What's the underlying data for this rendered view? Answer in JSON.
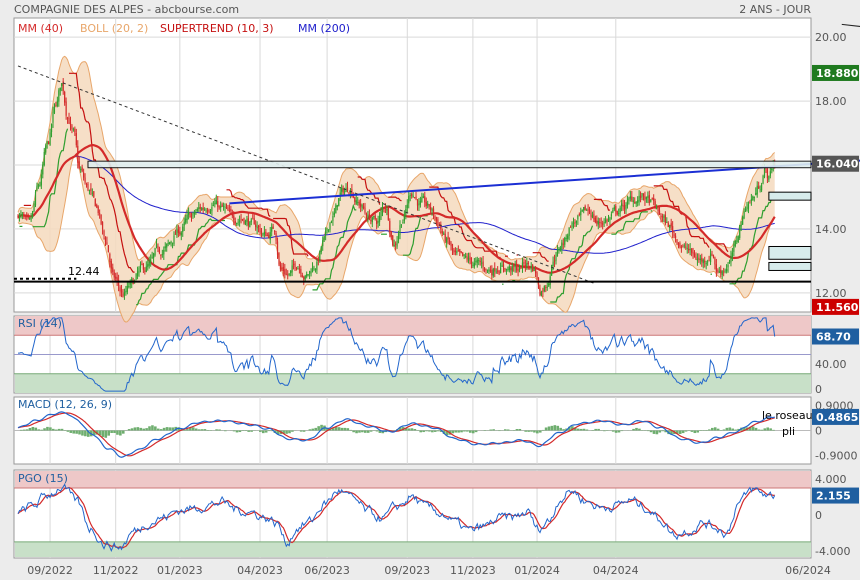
{
  "header": {
    "title": "COMPAGNIE DES ALPES - abcbourse.com",
    "period": "2 ANS - JOUR"
  },
  "colors": {
    "background": "#ececec",
    "panel": "#ffffff",
    "grid": "#d9d9d9",
    "candle_up": "#2e9e2e",
    "candle_down": "#d42a2a",
    "mm40": "#d42a2a",
    "boll_fill": "#f4d9bd",
    "boll_line": "#e8a66a",
    "supertrend_up": "#2e9e2e",
    "supertrend_down": "#c51010",
    "mm200": "#2020cc",
    "trend_blue": "#1b2fd4",
    "overbought_zone": "#eec8c8",
    "oversold_zone": "#c8e0c8",
    "rsi_line": "#2266cc",
    "macd_line": "#2266cc",
    "signal_line": "#d42a2a",
    "macd_hist": "#6fae6f",
    "pgo_line": "#2266cc",
    "pgo_signal": "#d42a2a",
    "tag_dark": "#555555",
    "tag_green": "#1f7a1f",
    "tag_red": "#cc0000",
    "tag_blue": "#1f5fa0"
  },
  "chart_data": [
    {
      "panel": "price",
      "type": "candlestick",
      "legend": [
        {
          "label": "MM (40)",
          "color": "#d42a2a"
        },
        {
          "label": "BOLL (20, 2)",
          "color": "#e8a66a"
        },
        {
          "label": "SUPERTREND (10, 3)",
          "color": "#c51010"
        },
        {
          "label": "MM (200)",
          "color": "#2020cc"
        }
      ],
      "y_ticks": [
        12.0,
        14.0,
        16.0,
        18.0,
        20.0
      ],
      "ylim": [
        11.4,
        20.6
      ],
      "price_tags": [
        {
          "value": 18.88,
          "label": "18.880",
          "style": "green"
        },
        {
          "value": 16.04,
          "label": "16.040",
          "style": "dark"
        },
        {
          "value": 11.56,
          "label": "11.560",
          "style": "red"
        }
      ],
      "annotation_level": {
        "value": 12.44,
        "label": "12.44"
      },
      "anchors": [
        [
          0,
          14.5
        ],
        [
          8,
          14.0
        ],
        [
          14,
          15.2
        ],
        [
          20,
          16.5
        ],
        [
          26,
          17.8
        ],
        [
          30,
          18.5
        ],
        [
          34,
          17.6
        ],
        [
          38,
          17.0
        ],
        [
          42,
          15.8
        ],
        [
          48,
          15.2
        ],
        [
          54,
          14.6
        ],
        [
          60,
          13.6
        ],
        [
          66,
          12.4
        ],
        [
          72,
          11.9
        ],
        [
          78,
          12.2
        ],
        [
          84,
          12.6
        ],
        [
          90,
          12.8
        ],
        [
          96,
          13.2
        ],
        [
          102,
          13.4
        ],
        [
          110,
          13.9
        ],
        [
          118,
          14.3
        ],
        [
          126,
          14.6
        ],
        [
          134,
          14.9
        ],
        [
          140,
          14.6
        ],
        [
          146,
          14.3
        ],
        [
          154,
          14.4
        ],
        [
          162,
          14.1
        ],
        [
          170,
          13.8
        ],
        [
          176,
          14.0
        ],
        [
          180,
          12.8
        ],
        [
          186,
          12.6
        ],
        [
          192,
          12.9
        ],
        [
          198,
          12.6
        ],
        [
          204,
          12.9
        ],
        [
          210,
          13.6
        ],
        [
          216,
          14.4
        ],
        [
          222,
          15.1
        ],
        [
          228,
          15.3
        ],
        [
          234,
          14.8
        ],
        [
          240,
          14.4
        ],
        [
          246,
          14.2
        ],
        [
          252,
          14.7
        ],
        [
          258,
          13.6
        ],
        [
          264,
          14.4
        ],
        [
          270,
          15.2
        ],
        [
          276,
          14.8
        ],
        [
          282,
          14.6
        ],
        [
          288,
          14.2
        ],
        [
          294,
          13.6
        ],
        [
          300,
          13.1
        ],
        [
          306,
          12.9
        ],
        [
          312,
          12.9
        ],
        [
          318,
          12.8
        ],
        [
          324,
          12.7
        ],
        [
          330,
          12.9
        ],
        [
          336,
          12.8
        ],
        [
          342,
          12.7
        ],
        [
          348,
          12.9
        ],
        [
          354,
          12.8
        ],
        [
          358,
          12.1
        ],
        [
          362,
          12.3
        ],
        [
          368,
          13.2
        ],
        [
          374,
          13.6
        ],
        [
          380,
          14.2
        ],
        [
          386,
          14.3
        ],
        [
          392,
          14.5
        ],
        [
          398,
          14.2
        ],
        [
          404,
          14.3
        ],
        [
          410,
          14.5
        ],
        [
          416,
          14.7
        ],
        [
          422,
          14.9
        ],
        [
          428,
          15.0
        ],
        [
          434,
          14.8
        ],
        [
          440,
          14.4
        ],
        [
          446,
          14.1
        ],
        [
          452,
          13.7
        ],
        [
          458,
          13.4
        ],
        [
          464,
          13.1
        ],
        [
          470,
          13.0
        ],
        [
          476,
          13.3
        ],
        [
          480,
          12.7
        ],
        [
          484,
          12.8
        ],
        [
          488,
          13.0
        ],
        [
          492,
          13.4
        ],
        [
          496,
          14.2
        ],
        [
          500,
          14.8
        ],
        [
          504,
          15.0
        ],
        [
          508,
          15.3
        ],
        [
          512,
          15.9
        ],
        [
          515,
          15.6
        ],
        [
          518,
          16.0
        ]
      ],
      "main_trend_line": {
        "start": [
          145,
          14.8
        ],
        "end": [
          760,
          16.7
        ]
      },
      "upper_right_line": {
        "start": [
          565,
          20.4
        ],
        "end": [
          760,
          19.4
        ]
      },
      "dashed_trendline": {
        "start": [
          0,
          19.1
        ],
        "end": [
          395,
          12.3
        ]
      },
      "horizontal_lines": [
        16.12,
        16.04,
        12.35
      ],
      "right_boxes": [
        {
          "from": 15.15,
          "to": 14.9
        },
        {
          "from": 13.45,
          "to": 13.05
        },
        {
          "from": 12.95,
          "to": 12.7
        }
      ]
    },
    {
      "panel": "rsi",
      "type": "line",
      "title": "RSI (14)",
      "y_ticks": [
        0,
        40.0
      ],
      "zones": [
        70,
        30
      ],
      "ylim": [
        0,
        100
      ],
      "last_value": 68.7,
      "last_label": "68.70"
    },
    {
      "panel": "macd",
      "type": "line",
      "title": "MACD (12, 26, 9)",
      "y_ticks": [
        0.9,
        0,
        -0.9
      ],
      "y_tick_labels": [
        "0.9000",
        "0",
        "-0.9000"
      ],
      "ylim": [
        -1.2,
        1.2
      ],
      "last_value": 0.4865,
      "last_label": "0.4865",
      "annotations": [
        "le roseau",
        "pli"
      ],
      "anchors": [
        [
          0,
          0.1
        ],
        [
          12,
          0.35
        ],
        [
          25,
          0.6
        ],
        [
          32,
          0.65
        ],
        [
          40,
          0.4
        ],
        [
          50,
          -0.1
        ],
        [
          62,
          -0.65
        ],
        [
          72,
          -0.95
        ],
        [
          82,
          -0.7
        ],
        [
          96,
          -0.3
        ],
        [
          110,
          0.05
        ],
        [
          125,
          0.3
        ],
        [
          140,
          0.35
        ],
        [
          160,
          0.2
        ],
        [
          172,
          0.05
        ],
        [
          185,
          -0.3
        ],
        [
          198,
          -0.35
        ],
        [
          212,
          0.1
        ],
        [
          225,
          0.4
        ],
        [
          240,
          0.15
        ],
        [
          255,
          -0.05
        ],
        [
          270,
          0.25
        ],
        [
          285,
          0.1
        ],
        [
          300,
          -0.3
        ],
        [
          315,
          -0.5
        ],
        [
          330,
          -0.45
        ],
        [
          345,
          -0.35
        ],
        [
          358,
          -0.55
        ],
        [
          370,
          -0.1
        ],
        [
          385,
          0.25
        ],
        [
          400,
          0.35
        ],
        [
          415,
          0.2
        ],
        [
          428,
          0.35
        ],
        [
          440,
          0.1
        ],
        [
          455,
          -0.3
        ],
        [
          468,
          -0.45
        ],
        [
          480,
          -0.25
        ],
        [
          492,
          -0.05
        ],
        [
          505,
          0.3
        ],
        [
          518,
          0.49
        ]
      ]
    },
    {
      "panel": "pgo",
      "type": "line",
      "title": "PGO (15)",
      "y_ticks": [
        4.0,
        0,
        -4.0
      ],
      "y_tick_labels": [
        "4.000",
        "0",
        "-4.000"
      ],
      "zones": [
        3.0,
        -3.0
      ],
      "ylim": [
        -5,
        5
      ],
      "last_value": 2.155,
      "last_label": "2.155",
      "anchors": [
        [
          0,
          0.2
        ],
        [
          10,
          1.0
        ],
        [
          20,
          2.2
        ],
        [
          30,
          3.1
        ],
        [
          40,
          1.5
        ],
        [
          50,
          -1.5
        ],
        [
          60,
          -3.3
        ],
        [
          70,
          -3.6
        ],
        [
          80,
          -1.8
        ],
        [
          90,
          -0.8
        ],
        [
          100,
          -0.3
        ],
        [
          110,
          0.5
        ],
        [
          120,
          0.7
        ],
        [
          130,
          1.1
        ],
        [
          140,
          1.4
        ],
        [
          150,
          0.6
        ],
        [
          160,
          0.3
        ],
        [
          170,
          -0.3
        ],
        [
          178,
          -1.0
        ],
        [
          184,
          -3.1
        ],
        [
          192,
          -1.4
        ],
        [
          200,
          -0.8
        ],
        [
          210,
          1.2
        ],
        [
          220,
          2.7
        ],
        [
          230,
          1.7
        ],
        [
          240,
          0.3
        ],
        [
          250,
          -0.4
        ],
        [
          260,
          0.9
        ],
        [
          270,
          2.0
        ],
        [
          280,
          0.8
        ],
        [
          290,
          0.2
        ],
        [
          300,
          -0.9
        ],
        [
          310,
          -1.8
        ],
        [
          320,
          -1.3
        ],
        [
          330,
          -0.4
        ],
        [
          340,
          -0.3
        ],
        [
          350,
          0.3
        ],
        [
          356,
          -1.6
        ],
        [
          364,
          -0.7
        ],
        [
          372,
          1.9
        ],
        [
          380,
          2.7
        ],
        [
          390,
          1.5
        ],
        [
          400,
          0.8
        ],
        [
          410,
          1.1
        ],
        [
          420,
          1.6
        ],
        [
          430,
          0.9
        ],
        [
          440,
          -0.4
        ],
        [
          450,
          -2.2
        ],
        [
          460,
          -1.7
        ],
        [
          470,
          -0.9
        ],
        [
          478,
          -1.3
        ],
        [
          486,
          -2.0
        ],
        [
          494,
          1.3
        ],
        [
          504,
          2.8
        ],
        [
          512,
          2.3
        ],
        [
          518,
          2.16
        ]
      ]
    }
  ],
  "x_axis": {
    "labels": [
      "09/2022",
      "11/2022",
      "01/2023",
      "04/2023",
      "06/2023",
      "09/2023",
      "11/2023",
      "01/2024",
      "04/2024",
      "06/2024"
    ],
    "total_days": 520,
    "label_days": [
      22,
      67,
      111,
      166,
      212,
      267,
      312,
      356,
      410,
      545
    ]
  }
}
